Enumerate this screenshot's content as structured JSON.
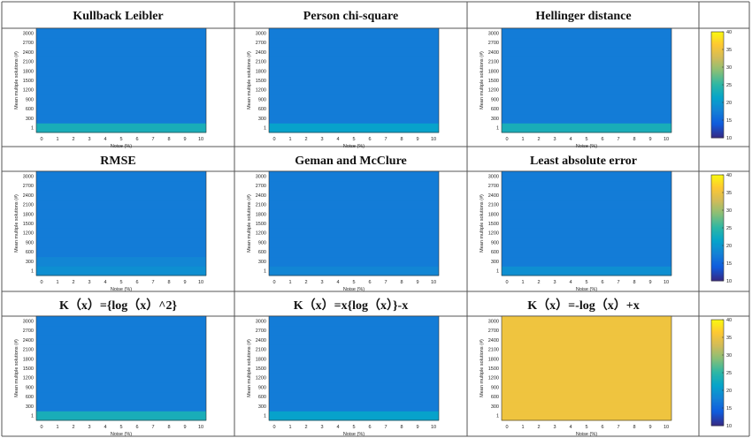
{
  "colormap": [
    "#352a87",
    "#0f5cdd",
    "#1481d6",
    "#06a4ca",
    "#2eb7a4",
    "#87bf77",
    "#d1bb59",
    "#fec832",
    "#f9fb0e"
  ],
  "chart_data": [
    {
      "type": "heatmap",
      "title": "Kullback Leibler",
      "xlabel": "Noise (%)",
      "ylabel": "Mean multiple solutions (#)",
      "x": [
        0,
        1,
        2,
        3,
        4,
        5,
        6,
        7,
        8,
        9,
        10
      ],
      "y": [
        1,
        300,
        600,
        900,
        1200,
        1500,
        1800,
        2100,
        2400,
        2700,
        3000
      ],
      "colorbar": {
        "ticks": [
          10,
          15,
          20,
          25,
          30,
          35,
          40
        ],
        "range": [
          10,
          40
        ]
      },
      "value_by_row": [
        23,
        17,
        17,
        17,
        17,
        17,
        17,
        17,
        17,
        17,
        17
      ]
    },
    {
      "type": "heatmap",
      "title": "Person chi-square",
      "xlabel": "Noise (%)",
      "ylabel": "Mean multiple solutions (#)",
      "x": [
        0,
        1,
        2,
        3,
        4,
        5,
        6,
        7,
        8,
        9,
        10
      ],
      "y": [
        1,
        300,
        600,
        900,
        1200,
        1500,
        1800,
        2100,
        2400,
        2700,
        3000
      ],
      "value_by_row": [
        21,
        17,
        17,
        17,
        17,
        17,
        17,
        17,
        17,
        17,
        17
      ]
    },
    {
      "type": "heatmap",
      "title": "Hellinger distance",
      "xlabel": "Noise (%)",
      "ylabel": "Mean multiple solutions (#)",
      "x": [
        0,
        1,
        2,
        3,
        4,
        5,
        6,
        7,
        8,
        9,
        10
      ],
      "y": [
        1,
        300,
        600,
        900,
        1200,
        1500,
        1800,
        2100,
        2400,
        2700,
        3000
      ],
      "value_by_row": [
        23,
        17,
        17,
        17,
        17,
        17,
        17,
        17,
        17,
        17,
        17
      ]
    },
    {
      "type": "heatmap",
      "title": "RMSE",
      "xlabel": "Noise (%)",
      "ylabel": "Mean multiple solutions (#)",
      "x": [
        0,
        1,
        2,
        3,
        4,
        5,
        6,
        7,
        8,
        9,
        10
      ],
      "y": [
        1,
        300,
        600,
        900,
        1200,
        1500,
        1800,
        2100,
        2400,
        2700,
        3000
      ],
      "colorbar": {
        "ticks": [
          10,
          15,
          20,
          25,
          30,
          35,
          40
        ],
        "range": [
          10,
          40
        ]
      },
      "value_by_row": [
        19,
        18,
        17,
        17,
        17,
        17,
        17,
        17,
        17,
        17,
        17
      ]
    },
    {
      "type": "heatmap",
      "title": "Geman and McClure",
      "xlabel": "Noise (%)",
      "ylabel": "Mean multiple solutions (#)",
      "x": [
        0,
        1,
        2,
        3,
        4,
        5,
        6,
        7,
        8,
        9,
        10
      ],
      "y": [
        1,
        300,
        600,
        900,
        1200,
        1500,
        1800,
        2100,
        2400,
        2700,
        3000
      ],
      "value_by_row": [
        18,
        17,
        17,
        17,
        17,
        17,
        17,
        17,
        17,
        17,
        17
      ]
    },
    {
      "type": "heatmap",
      "title": "Least absolute error",
      "xlabel": "Noise (%)",
      "ylabel": "Mean multiple solutions (#)",
      "x": [
        0,
        1,
        2,
        3,
        4,
        5,
        6,
        7,
        8,
        9,
        10
      ],
      "y": [
        1,
        300,
        600,
        900,
        1200,
        1500,
        1800,
        2100,
        2400,
        2700,
        3000
      ],
      "value_by_row": [
        19,
        17,
        17,
        17,
        17,
        17,
        17,
        17,
        17,
        17,
        17
      ]
    },
    {
      "type": "heatmap",
      "title": "K（x）={log（x）^2}",
      "xlabel": "Noise (%)",
      "ylabel": "Mean multiple solutions (#)",
      "x": [
        0,
        1,
        2,
        3,
        4,
        5,
        6,
        7,
        8,
        9,
        10
      ],
      "y": [
        1,
        300,
        600,
        900,
        1200,
        1500,
        1800,
        2100,
        2400,
        2700,
        3000
      ],
      "colorbar": {
        "ticks": [
          10,
          15,
          20,
          25,
          30,
          35,
          40
        ],
        "range": [
          10,
          40
        ]
      },
      "value_by_row": [
        23,
        17,
        17,
        17,
        17,
        17,
        17,
        17,
        17,
        17,
        17
      ]
    },
    {
      "type": "heatmap",
      "title": "K（x）=x{log（x）}-x",
      "xlabel": "Noise (%)",
      "ylabel": "Mean multiple solutions (#)",
      "x": [
        0,
        1,
        2,
        3,
        4,
        5,
        6,
        7,
        8,
        9,
        10
      ],
      "y": [
        1,
        300,
        600,
        900,
        1200,
        1500,
        1800,
        2100,
        2400,
        2700,
        3000
      ],
      "value_by_row": [
        21,
        17,
        17,
        17,
        17,
        17,
        17,
        17,
        17,
        17,
        17
      ]
    },
    {
      "type": "heatmap",
      "title": "K（x）=-log（x）+x",
      "xlabel": "Noise (%)",
      "ylabel": "Mean multiple solutions (#)",
      "x": [
        0,
        1,
        2,
        3,
        4,
        5,
        6,
        7,
        8,
        9,
        10
      ],
      "y": [
        1,
        300,
        600,
        900,
        1200,
        1500,
        1800,
        2100,
        2400,
        2700,
        3000
      ],
      "value_by_row": [
        35,
        35,
        35,
        35,
        35,
        35,
        35,
        35,
        35,
        35,
        35
      ]
    }
  ]
}
